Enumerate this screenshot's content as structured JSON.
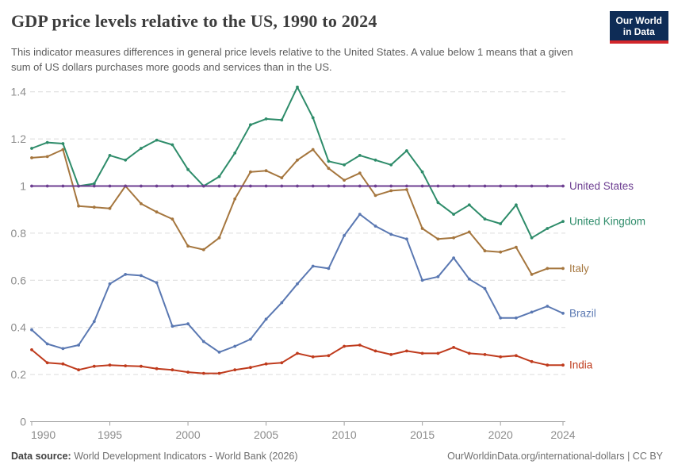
{
  "header": {
    "title": "GDP price levels relative to the US, 1990 to 2024",
    "subtitle": "This indicator measures differences in general price levels relative to the United States. A value below 1 means that a given sum of US dollars purchases more goods and services than in the US.",
    "logo": {
      "line1": "Our World",
      "line2": "in Data",
      "bg_color": "#0e2c56",
      "bar_color": "#d2262b"
    }
  },
  "chart_data": {
    "type": "line",
    "title": "GDP price levels relative to the US, 1990 to 2024",
    "xlabel": "",
    "ylabel": "",
    "ylim": [
      0,
      1.45
    ],
    "grid": "horizontal-dashed",
    "legend_position": "right-end-labels",
    "x": [
      1990,
      1991,
      1992,
      1993,
      1994,
      1995,
      1996,
      1997,
      1998,
      1999,
      2000,
      2001,
      2002,
      2003,
      2004,
      2005,
      2006,
      2007,
      2008,
      2009,
      2010,
      2011,
      2012,
      2013,
      2014,
      2015,
      2016,
      2017,
      2018,
      2019,
      2020,
      2021,
      2022,
      2023,
      2024
    ],
    "x_ticks": [
      1990,
      1995,
      2000,
      2005,
      2010,
      2015,
      2020,
      2024
    ],
    "y_ticks": [
      0,
      0.2,
      0.4,
      0.6,
      0.8,
      1,
      1.2,
      1.4
    ],
    "series": [
      {
        "name": "United States",
        "color": "#6D3E91",
        "values": [
          1,
          1,
          1,
          1,
          1,
          1,
          1,
          1,
          1,
          1,
          1,
          1,
          1,
          1,
          1,
          1,
          1,
          1,
          1,
          1,
          1,
          1,
          1,
          1,
          1,
          1,
          1,
          1,
          1,
          1,
          1,
          1,
          1,
          1,
          1
        ]
      },
      {
        "name": "United Kingdom",
        "color": "#2E8C6A",
        "values": [
          1.16,
          1.185,
          1.18,
          1.0,
          1.01,
          1.13,
          1.11,
          1.16,
          1.195,
          1.175,
          1.07,
          1.0,
          1.04,
          1.14,
          1.26,
          1.285,
          1.28,
          1.42,
          1.29,
          1.105,
          1.09,
          1.13,
          1.11,
          1.09,
          1.15,
          1.06,
          0.93,
          0.88,
          0.92,
          0.86,
          0.84,
          0.92,
          0.78,
          0.82,
          0.85
        ]
      },
      {
        "name": "Italy",
        "color": "#A5763E",
        "values": [
          1.12,
          1.125,
          1.155,
          0.915,
          0.91,
          0.905,
          1.0,
          0.925,
          0.89,
          0.86,
          0.745,
          0.73,
          0.78,
          0.945,
          1.06,
          1.065,
          1.035,
          1.11,
          1.155,
          1.075,
          1.025,
          1.055,
          0.96,
          0.98,
          0.985,
          0.82,
          0.775,
          0.78,
          0.805,
          0.725,
          0.72,
          0.74,
          0.625,
          0.65,
          0.65
        ]
      },
      {
        "name": "Brazil",
        "color": "#5A78B2",
        "values": [
          0.39,
          0.33,
          0.31,
          0.325,
          0.425,
          0.585,
          0.625,
          0.62,
          0.59,
          0.405,
          0.415,
          0.34,
          0.295,
          0.32,
          0.35,
          0.435,
          0.505,
          0.585,
          0.66,
          0.65,
          0.79,
          0.88,
          0.83,
          0.795,
          0.775,
          0.6,
          0.615,
          0.695,
          0.605,
          0.565,
          0.44,
          0.44,
          0.465,
          0.49,
          0.46
        ]
      },
      {
        "name": "India",
        "color": "#BF3B1D",
        "values": [
          0.305,
          0.25,
          0.245,
          0.22,
          0.235,
          0.24,
          0.237,
          0.235,
          0.225,
          0.22,
          0.21,
          0.205,
          0.205,
          0.22,
          0.23,
          0.245,
          0.25,
          0.29,
          0.275,
          0.28,
          0.32,
          0.325,
          0.3,
          0.285,
          0.3,
          0.29,
          0.29,
          0.315,
          0.29,
          0.285,
          0.275,
          0.28,
          0.255,
          0.24,
          0.24
        ]
      }
    ]
  },
  "footer": {
    "source_label": "Data source:",
    "source_text": "World Development Indicators - World Bank (2026)",
    "credit": "OurWorldinData.org/international-dollars | CC BY"
  }
}
